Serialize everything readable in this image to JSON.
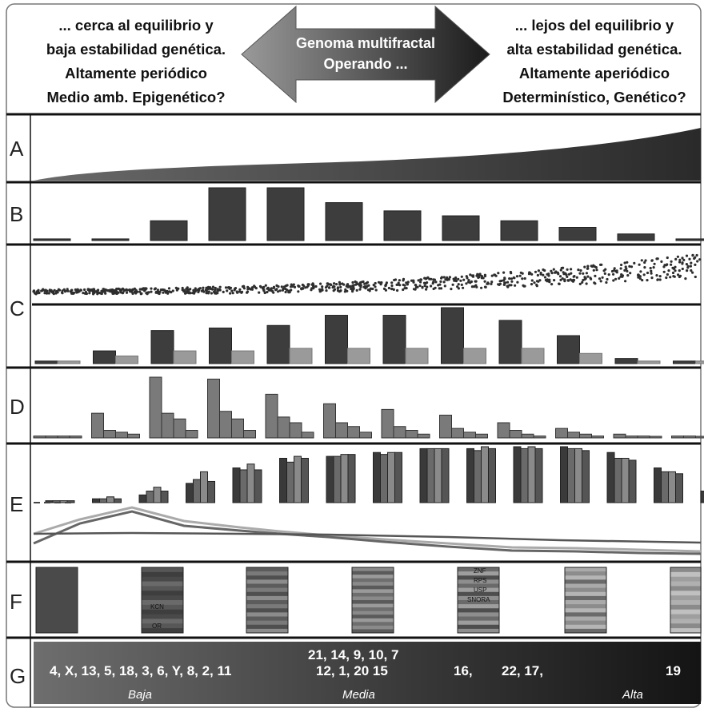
{
  "header": {
    "left_lines": [
      "... cerca al equilibrio y",
      "baja estabilidad genética.",
      "Altamente periódico",
      "Medio amb. Epigenético?"
    ],
    "right_lines": [
      "... lejos del equilibrio y",
      "alta estabilidad genética.",
      "Altamente aperiódico",
      "Determinístico, Genético?"
    ],
    "arrow_lines": [
      "Genoma multifractal",
      "Operando ..."
    ]
  },
  "rows": [
    {
      "letter": "A"
    },
    {
      "letter": "B"
    },
    {
      "letter": "C"
    },
    {
      "letter": "D"
    },
    {
      "letter": "E"
    },
    {
      "letter": "F"
    },
    {
      "letter": "G"
    }
  ],
  "panel_b": {
    "values": [
      1,
      1,
      12,
      32,
      32,
      23,
      18,
      15,
      12,
      8,
      4,
      1
    ]
  },
  "panel_c": {
    "dark": [
      1,
      5,
      13,
      14,
      15,
      19,
      19,
      22,
      17,
      11,
      2,
      1
    ],
    "light": [
      1,
      3,
      5,
      5,
      6,
      6,
      6,
      6,
      6,
      4,
      1,
      1
    ]
  },
  "panel_d": {
    "groups": [
      [
        1,
        1,
        1,
        1
      ],
      [
        13,
        4,
        3,
        2
      ],
      [
        32,
        13,
        10,
        4
      ],
      [
        31,
        14,
        10,
        4
      ],
      [
        23,
        11,
        8,
        3
      ],
      [
        18,
        8,
        6,
        3
      ],
      [
        15,
        6,
        4,
        2
      ],
      [
        12,
        5,
        3,
        2
      ],
      [
        8,
        4,
        2,
        1
      ],
      [
        5,
        3,
        2,
        1
      ],
      [
        2,
        1,
        1,
        0
      ],
      [
        1,
        1,
        0,
        0
      ]
    ]
  },
  "panel_e": {
    "groups": [
      [
        1,
        1,
        1,
        1
      ],
      [
        2,
        2,
        3,
        2
      ],
      [
        4,
        6,
        8,
        6
      ],
      [
        10,
        12,
        16,
        11
      ],
      [
        18,
        17,
        20,
        17
      ],
      [
        23,
        21,
        24,
        23
      ],
      [
        24,
        24,
        25,
        25
      ],
      [
        26,
        25,
        26,
        26
      ],
      [
        28,
        28,
        28,
        28
      ],
      [
        28,
        27,
        29,
        28
      ],
      [
        29,
        28,
        29,
        28
      ],
      [
        29,
        28,
        28,
        27
      ],
      [
        26,
        23,
        23,
        22
      ],
      [
        18,
        16,
        16,
        15
      ],
      [
        6,
        6,
        6,
        5
      ]
    ]
  },
  "panel_f": {
    "labels": [
      "ZNF",
      "RPS",
      "USP",
      "SNORA"
    ],
    "labels2": [
      "KCN",
      "OR"
    ]
  },
  "panel_g": {
    "numbers_left": "4, X, 13, 5, 18, 3, 6, Y, 8, 2, 11",
    "numbers_mid_top": "21, 14, 9, 10, 7",
    "numbers_mid_bottom": "12, 1, 20 15",
    "num_16": "16,",
    "num_22": "22, 17,",
    "num_19": "19",
    "cat_low": "Baja",
    "cat_mid": "Media",
    "cat_high": "Alta"
  },
  "colors": {
    "dark_bar": "#3d3d3d",
    "light_bar": "#9a9a9a",
    "mid_bar": "#7a7a7a",
    "border": "#111111"
  }
}
